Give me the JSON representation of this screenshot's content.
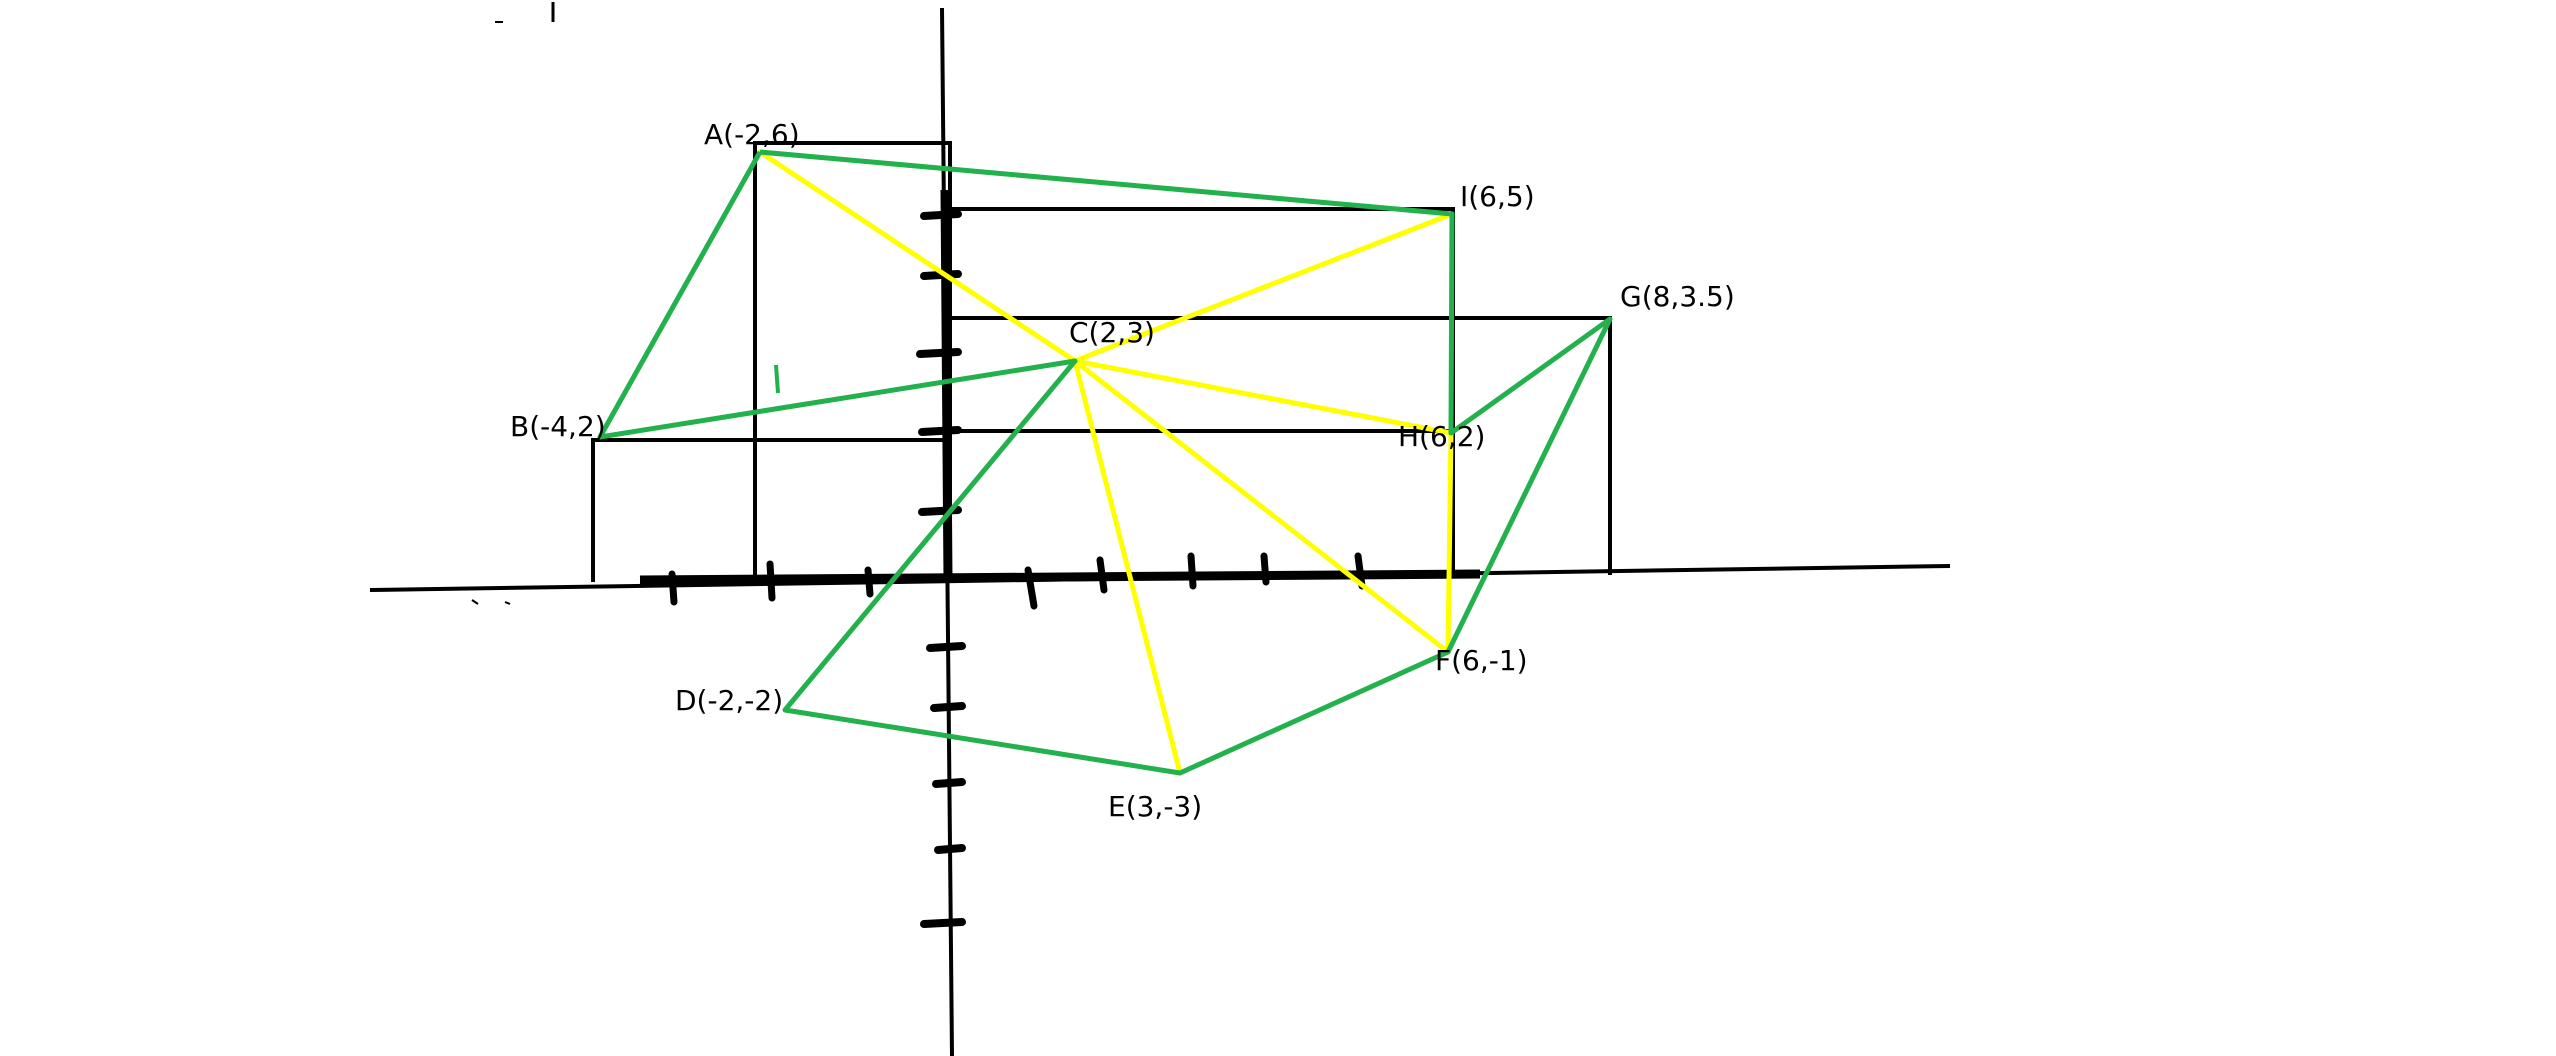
{
  "points": [
    {
      "id": "A",
      "label": "A(-2,6)",
      "x": -2,
      "y": 6
    },
    {
      "id": "B",
      "label": "B(-4,2)",
      "x": -4,
      "y": 2
    },
    {
      "id": "C",
      "label": "C(2,3)",
      "x": 2,
      "y": 3
    },
    {
      "id": "D",
      "label": "D(-2,-2)",
      "x": -2,
      "y": -2
    },
    {
      "id": "E",
      "label": "E(3,-3)",
      "x": 3,
      "y": -3
    },
    {
      "id": "F",
      "label": "F(6,-1)",
      "x": 6,
      "y": -1
    },
    {
      "id": "G",
      "label": "G(8,3.5)",
      "x": 8,
      "y": 3.5
    },
    {
      "id": "H",
      "label": "H(6,2)",
      "x": 6,
      "y": 2
    },
    {
      "id": "I",
      "label": "I(6,5)",
      "x": 6,
      "y": 5
    }
  ],
  "green_outline": [
    "A",
    "I",
    "H",
    "G",
    "F",
    "E",
    "D",
    "C",
    "B",
    "A"
  ],
  "yellow_segments": [
    [
      "C",
      "A"
    ],
    [
      "C",
      "I"
    ],
    [
      "C",
      "H"
    ],
    [
      "C",
      "F"
    ],
    [
      "C",
      "E"
    ],
    [
      "H",
      "F"
    ]
  ],
  "colors": {
    "green": "#22b14c",
    "yellow": "#ffff00",
    "ink": "#000000"
  }
}
